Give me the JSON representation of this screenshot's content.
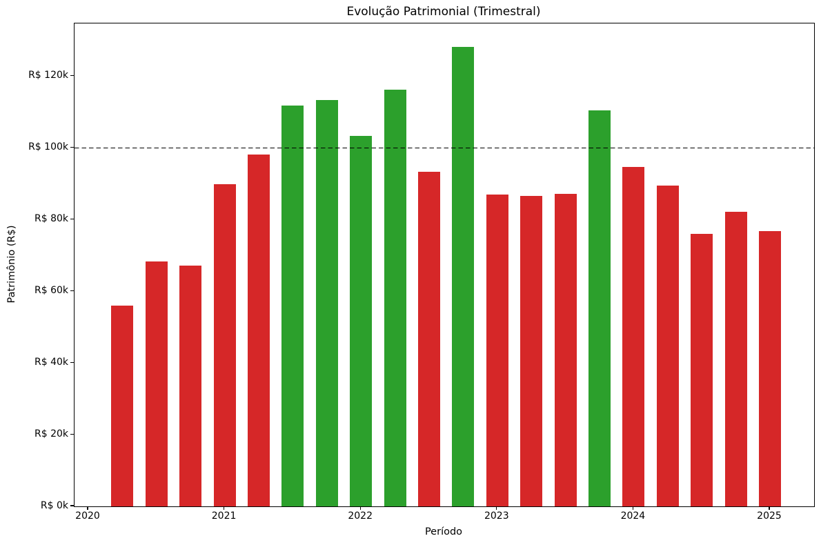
{
  "figure": {
    "title": "Evolução Patrimonial (Trimestral)",
    "xlabel": "Período",
    "ylabel": "Patrimônio (R$)"
  },
  "chart_data": {
    "type": "bar",
    "title": "Evolução Patrimonial (Trimestral)",
    "xlabel": "Período",
    "ylabel": "Patrimônio (R$)",
    "grid": false,
    "legend": null,
    "ylim": [
      0,
      134800
    ],
    "currency_prefix": "R$",
    "palette": {
      "above_threshold": "#2ca02c",
      "below_threshold": "#d62728",
      "threshold_line": "#000000",
      "spine": "#000000",
      "background": "#ffffff"
    },
    "threshold": {
      "value": 100000,
      "style": "dashed",
      "color": "#000000"
    },
    "points": [
      {
        "period": "2020-Q2",
        "t": 2020.25,
        "value": 56000,
        "color": "below_threshold"
      },
      {
        "period": "2020-Q3",
        "t": 2020.5,
        "value": 68400,
        "color": "below_threshold"
      },
      {
        "period": "2020-Q4",
        "t": 2020.75,
        "value": 67300,
        "color": "below_threshold"
      },
      {
        "period": "2021-Q1",
        "t": 2021.0,
        "value": 90000,
        "color": "below_threshold"
      },
      {
        "period": "2021-Q2",
        "t": 2021.25,
        "value": 98300,
        "color": "below_threshold"
      },
      {
        "period": "2021-Q3",
        "t": 2021.5,
        "value": 111800,
        "color": "above_threshold"
      },
      {
        "period": "2021-Q4",
        "t": 2021.75,
        "value": 113500,
        "color": "above_threshold"
      },
      {
        "period": "2022-Q1",
        "t": 2022.0,
        "value": 103500,
        "color": "above_threshold"
      },
      {
        "period": "2022-Q2",
        "t": 2022.25,
        "value": 116400,
        "color": "above_threshold"
      },
      {
        "period": "2022-Q3",
        "t": 2022.5,
        "value": 93500,
        "color": "below_threshold"
      },
      {
        "period": "2022-Q4",
        "t": 2022.75,
        "value": 128300,
        "color": "above_threshold"
      },
      {
        "period": "2023-Q1",
        "t": 2023.0,
        "value": 87100,
        "color": "below_threshold"
      },
      {
        "period": "2023-Q2",
        "t": 2023.25,
        "value": 86700,
        "color": "below_threshold"
      },
      {
        "period": "2023-Q3",
        "t": 2023.5,
        "value": 87300,
        "color": "below_threshold"
      },
      {
        "period": "2023-Q4",
        "t": 2023.75,
        "value": 110600,
        "color": "above_threshold"
      },
      {
        "period": "2024-Q1",
        "t": 2024.0,
        "value": 94800,
        "color": "below_threshold"
      },
      {
        "period": "2024-Q2",
        "t": 2024.25,
        "value": 89500,
        "color": "below_threshold"
      },
      {
        "period": "2024-Q3",
        "t": 2024.5,
        "value": 76100,
        "color": "below_threshold"
      },
      {
        "period": "2024-Q4",
        "t": 2024.75,
        "value": 82300,
        "color": "below_threshold"
      },
      {
        "period": "2025-Q1",
        "t": 2025.0,
        "value": 76800,
        "color": "below_threshold"
      }
    ],
    "yticks": [
      {
        "value": 0,
        "label": "R$ 0k"
      },
      {
        "value": 20000,
        "label": "R$ 20k"
      },
      {
        "value": 40000,
        "label": "R$ 40k"
      },
      {
        "value": 60000,
        "label": "R$ 60k"
      },
      {
        "value": 80000,
        "label": "R$ 80k"
      },
      {
        "value": 100000,
        "label": "R$ 100k"
      },
      {
        "value": 120000,
        "label": "R$ 120k"
      }
    ],
    "xticks": [
      {
        "t": 2020,
        "label": "2020"
      },
      {
        "t": 2021,
        "label": "2021"
      },
      {
        "t": 2022,
        "label": "2022"
      },
      {
        "t": 2023,
        "label": "2023"
      },
      {
        "t": 2024,
        "label": "2024"
      },
      {
        "t": 2025,
        "label": "2025"
      }
    ]
  }
}
